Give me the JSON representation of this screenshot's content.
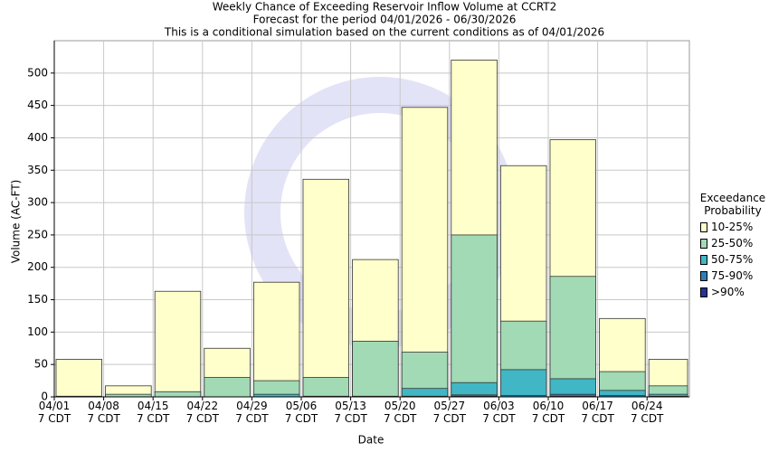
{
  "chart_data": {
    "type": "bar",
    "title": "Weekly Chance of Exceeding Reservoir Inflow Volume at CCRT2",
    "subtitle": "Forecast for the period 04/01/2026 - 06/30/2026",
    "note": "This is a conditional simulation based on the current conditions as of 04/01/2026",
    "x_label": "Date",
    "y_label": "Volume (AC-FT)",
    "categories": [
      "04/01",
      "04/08",
      "04/15",
      "04/22",
      "04/29",
      "05/06",
      "05/13",
      "05/20",
      "05/27",
      "06/03",
      "06/10",
      "06/17",
      "06/24"
    ],
    "time_label": "7 CDT",
    "legend_title": "Exceedance Probability",
    "series": [
      {
        "name": "10-25%",
        "color": "#ffffcc",
        "values": [
          58,
          17,
          163,
          75,
          177,
          336,
          212,
          447,
          520,
          357,
          397,
          121,
          58
        ]
      },
      {
        "name": "25-50%",
        "color": "#a1dab4",
        "values": [
          1,
          4,
          8,
          30,
          25,
          30,
          86,
          69,
          250,
          117,
          186,
          39,
          17
        ]
      },
      {
        "name": "50-75%",
        "color": "#41b6c4",
        "values": [
          0,
          0,
          0,
          0,
          4,
          1,
          1,
          13,
          22,
          42,
          28,
          10,
          4
        ]
      },
      {
        "name": "75-90%",
        "color": "#2c7fb8",
        "values": [
          0,
          0,
          0,
          0,
          0,
          0,
          0,
          1,
          3,
          2,
          4,
          2,
          1
        ]
      },
      {
        "name": ">90%",
        "color": "#253494",
        "values": [
          0,
          0,
          0,
          0,
          0,
          0,
          0,
          0,
          1,
          0,
          1,
          0,
          0
        ]
      }
    ],
    "ylim": [
      0,
      550
    ],
    "yticks": [
      0,
      50,
      100,
      150,
      200,
      250,
      300,
      350,
      400,
      450,
      500
    ],
    "grid": true
  }
}
